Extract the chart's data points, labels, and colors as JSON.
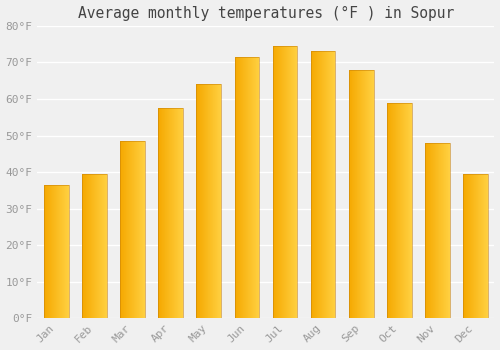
{
  "title": "Average monthly temperatures (°F ) in Sopur",
  "months": [
    "Jan",
    "Feb",
    "Mar",
    "Apr",
    "May",
    "Jun",
    "Jul",
    "Aug",
    "Sep",
    "Oct",
    "Nov",
    "Dec"
  ],
  "values": [
    36.5,
    39.5,
    48.5,
    57.5,
    64.0,
    71.5,
    74.5,
    73.0,
    68.0,
    59.0,
    48.0,
    39.5
  ],
  "bar_color_left": "#F5A800",
  "bar_color_right": "#FFD040",
  "bar_edge_color": "#C8820A",
  "background_color": "#f0f0f0",
  "grid_color": "#ffffff",
  "tick_label_color": "#999999",
  "title_color": "#444444",
  "ylim": [
    0,
    80
  ],
  "yticks": [
    0,
    10,
    20,
    30,
    40,
    50,
    60,
    70,
    80
  ],
  "ytick_labels": [
    "0°F",
    "10°F",
    "20°F",
    "30°F",
    "40°F",
    "50°F",
    "60°F",
    "70°F",
    "80°F"
  ],
  "title_fontsize": 10.5,
  "tick_fontsize": 8,
  "bar_width": 0.65,
  "figsize": [
    5.0,
    3.5
  ],
  "dpi": 100
}
